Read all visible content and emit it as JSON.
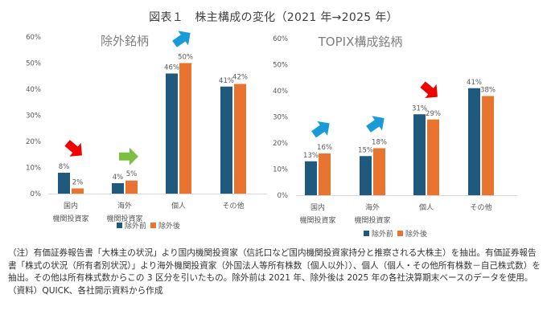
{
  "title": "図表１　株主構成の変化（2021 年→2025 年）",
  "colors": {
    "before": "#1F5A7E",
    "after": "#E8742F",
    "axis_text": "#595959",
    "baseline": "#D9D9D9",
    "arrow_up": "#1A9BD7",
    "arrow_down": "#F00000",
    "arrow_flat": "#7BC043"
  },
  "chart_data": [
    {
      "type": "bar",
      "title": "除外銘柄",
      "categories": [
        "国内\n機関投資家",
        "海外\n機関投資家",
        "個人",
        "その他"
      ],
      "category_lines": [
        [
          "国内",
          "機関投資家"
        ],
        [
          "海外",
          "機関投資家"
        ],
        [
          "個人"
        ],
        [
          "その他"
        ]
      ],
      "series": [
        {
          "name": "除外前",
          "values": [
            8,
            4,
            46,
            41
          ],
          "labels": [
            "8%",
            "4%",
            "46%",
            "41%"
          ]
        },
        {
          "name": "除外後",
          "values": [
            2,
            5,
            50,
            42
          ],
          "labels": [
            "2%",
            "5%",
            "50%",
            "42%"
          ]
        }
      ],
      "ylim": [
        0,
        60
      ],
      "yticks": [
        "0%",
        "10%",
        "20%",
        "30%",
        "40%",
        "50%",
        "60%"
      ],
      "xlabel": "",
      "ylabel": "",
      "grid": false,
      "legend": [
        "除外前",
        "除外後"
      ],
      "legend_position": "bottom",
      "annotations": [
        {
          "category": 0,
          "type": "arrow",
          "direction": "down",
          "color": "red"
        },
        {
          "category": 1,
          "type": "arrow",
          "direction": "flat",
          "color": "green"
        },
        {
          "category": 2,
          "type": "arrow",
          "direction": "up",
          "color": "blue"
        }
      ]
    },
    {
      "type": "bar",
      "title": "TOPIX構成銘柄",
      "categories": [
        "国内\n機関投資家",
        "海外\n機関投資家",
        "個人",
        "その他"
      ],
      "category_lines": [
        [
          "国内",
          "機関投資家"
        ],
        [
          "海外",
          "機関投資家"
        ],
        [
          "個人"
        ],
        [
          "その他"
        ]
      ],
      "series": [
        {
          "name": "除外前",
          "values": [
            13,
            15,
            31,
            41
          ],
          "labels": [
            "13%",
            "15%",
            "31%",
            "41%"
          ]
        },
        {
          "name": "除外後",
          "values": [
            16,
            18,
            29,
            38
          ],
          "labels": [
            "16%",
            "18%",
            "29%",
            "38%"
          ]
        }
      ],
      "ylim": [
        0,
        60
      ],
      "yticks": [
        "0%",
        "10%",
        "20%",
        "30%",
        "40%",
        "50%",
        "60%"
      ],
      "xlabel": "",
      "ylabel": "",
      "grid": false,
      "legend": [
        "除外前",
        "除外後"
      ],
      "legend_position": "bottom",
      "annotations": [
        {
          "category": 0,
          "type": "arrow",
          "direction": "up",
          "color": "blue"
        },
        {
          "category": 1,
          "type": "arrow",
          "direction": "up",
          "color": "blue"
        },
        {
          "category": 2,
          "type": "arrow",
          "direction": "down",
          "color": "red"
        }
      ]
    }
  ],
  "notes": [
    "（注）有価証券報告書「大株主の状況」より国内機関投資家（信託口など国内機関投資家持分と推察される大株主）を抽出。有価証券報告書「株式の状況（所有者別状況）」より海外機関投資家（外国法人等所有株数〔個人以外〕）、個人（個人・その他所有株数－自己株式数）を抽出。その他は所有株式数からこの 3 区分を引いたもの。除外前は 2021 年、除外後は 2025 年の各社決算期末ベースのデータを使用。",
    "（資料）QUICK、各社開示資料から作成"
  ]
}
